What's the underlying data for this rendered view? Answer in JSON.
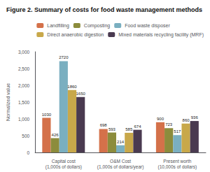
{
  "chart_data": {
    "type": "bar",
    "title": "Figure 2. Summary of costs for food waste management methods",
    "categories": [
      "Capital cost\n(1,000s of dollars)",
      "O&M Cost\n(1,000s of dollars/year)",
      "Present worth\n(10,000s of dollars)"
    ],
    "series": [
      {
        "name": "Landfilling",
        "color": "#D4714A",
        "values": [
          1030,
          698,
          900
        ]
      },
      {
        "name": "Composting",
        "color": "#8C8C3C",
        "values": [
          426,
          593,
          723
        ]
      },
      {
        "name": "Food waste disposer",
        "color": "#7AAFC0",
        "values": [
          2720,
          214,
          517
        ]
      },
      {
        "name": "Direct anaerobic digestion",
        "color": "#C8A84A",
        "values": [
          1860,
          585,
          860
        ]
      },
      {
        "name": "Mixed materials recycling facility (MRF)",
        "color": "#4A3A50",
        "values": [
          1650,
          674,
          936
        ]
      }
    ],
    "ylim": [
      0,
      3000
    ],
    "yticks": [
      0,
      500,
      {
        "value": 1000,
        "label": "1,000"
      },
      {
        "value": 1500,
        "label": "1,500"
      },
      {
        "value": 2000,
        "label": "2,000"
      },
      {
        "value": 2500,
        "label": "2,500"
      },
      {
        "value": 3000,
        "label": "3,000"
      }
    ],
    "ylabel": "Normalized value",
    "grid": false,
    "legend": "upper right",
    "data_labels": true
  }
}
